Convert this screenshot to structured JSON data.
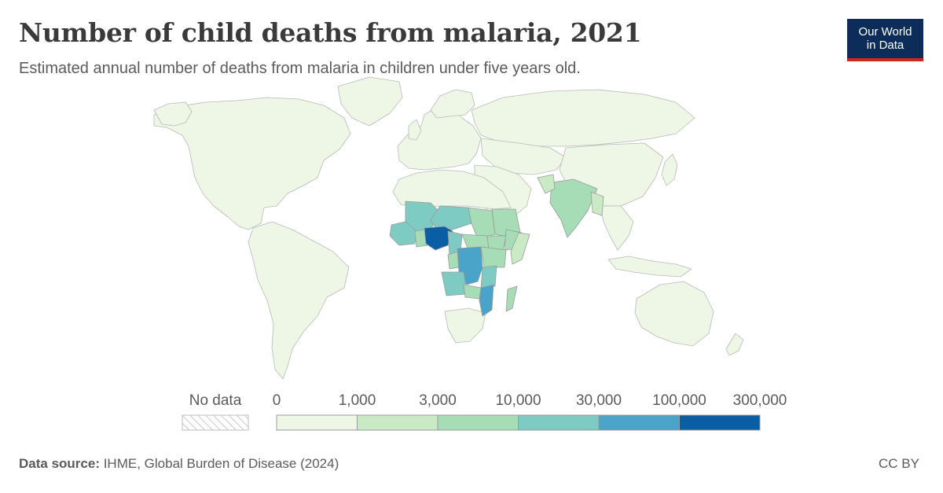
{
  "header": {
    "title": "Number of child deaths from malaria, 2021",
    "subtitle": "Estimated annual number of deaths from malaria in children under five years old.",
    "logo_line1": "Our World",
    "logo_line2": "in Data"
  },
  "legend": {
    "no_data_label": "No data",
    "ticks": [
      "0",
      "1,000",
      "3,000",
      "10,000",
      "30,000",
      "100,000",
      "300,000"
    ],
    "colors": [
      "#eef7e6",
      "#cae9c5",
      "#a6dcb6",
      "#7ecbc4",
      "#4aa3c9",
      "#0a5fa4"
    ]
  },
  "map": {
    "land_color": "#eef7e6",
    "border_color": "#b9b9b9",
    "regions": [
      {
        "name": "nigeria",
        "bin": 5
      },
      {
        "name": "dr-congo",
        "bin": 4
      },
      {
        "name": "mozambique",
        "bin": 4
      },
      {
        "name": "niger",
        "bin": 3
      },
      {
        "name": "mali",
        "bin": 3
      },
      {
        "name": "burkina-faso",
        "bin": 3
      },
      {
        "name": "angola",
        "bin": 3
      },
      {
        "name": "cameroon",
        "bin": 3
      },
      {
        "name": "uganda",
        "bin": 3
      },
      {
        "name": "tanzania",
        "bin": 3
      },
      {
        "name": "ivory-coast",
        "bin": 3
      },
      {
        "name": "guinea",
        "bin": 3
      },
      {
        "name": "ghana",
        "bin": 3
      },
      {
        "name": "sudan",
        "bin": 2
      },
      {
        "name": "chad",
        "bin": 2
      },
      {
        "name": "ethiopia",
        "bin": 2
      },
      {
        "name": "central-african-republic",
        "bin": 2
      },
      {
        "name": "south-sudan",
        "bin": 2
      },
      {
        "name": "kenya",
        "bin": 2
      },
      {
        "name": "zambia",
        "bin": 2
      },
      {
        "name": "malawi",
        "bin": 2
      },
      {
        "name": "madagascar",
        "bin": 2
      },
      {
        "name": "india",
        "bin": 2
      },
      {
        "name": "somalia",
        "bin": 1
      },
      {
        "name": "myanmar",
        "bin": 1
      },
      {
        "name": "pakistan",
        "bin": 1
      }
    ]
  },
  "footer": {
    "source_label": "Data source:",
    "source_text": " IHME, Global Burden of Disease (2024)",
    "license": "CC BY"
  }
}
